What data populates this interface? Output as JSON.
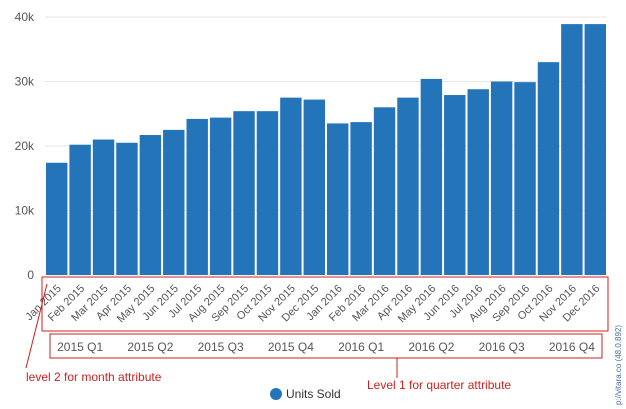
{
  "chart_data": {
    "type": "bar",
    "categories": [
      "Jan 2015",
      "Feb 2015",
      "Mar 2015",
      "Apr 2015",
      "May 2015",
      "Jun 2015",
      "Jul 2015",
      "Aug 2015",
      "Sep 2015",
      "Oct 2015",
      "Nov 2015",
      "Dec 2015",
      "Jan 2016",
      "Feb 2016",
      "Mar 2016",
      "Apr 2016",
      "May 2016",
      "Jun 2016",
      "Jul 2016",
      "Aug 2016",
      "Sep 2016",
      "Oct 2016",
      "Nov 2016",
      "Dec 2016"
    ],
    "series": [
      {
        "name": "Units Sold",
        "color": "#2374b8",
        "values": [
          17400,
          20200,
          21000,
          20500,
          21700,
          22500,
          24200,
          24400,
          25400,
          25400,
          27500,
          27200,
          23500,
          23700,
          26000,
          27500,
          30400,
          27900,
          28800,
          30000,
          29900,
          33000,
          38900,
          38900
        ]
      }
    ],
    "quarters": [
      "2015 Q1",
      "2015 Q2",
      "2015 Q3",
      "2015 Q4",
      "2016 Q1",
      "2016 Q2",
      "2016 Q3",
      "2016 Q4"
    ],
    "ylim": [
      0,
      40000
    ],
    "yticks": [
      {
        "value": 0,
        "label": "0"
      },
      {
        "value": 10000,
        "label": "10k"
      },
      {
        "value": 20000,
        "label": "20k"
      },
      {
        "value": 30000,
        "label": "30k"
      },
      {
        "value": 40000,
        "label": "40k"
      }
    ],
    "grid": true,
    "legend": "bottom-center"
  },
  "annotations": {
    "level2": "level 2 for month attribute",
    "level1": "Level 1 for quarter attribute"
  },
  "credits": "p://vitara.co (48.0.892)"
}
